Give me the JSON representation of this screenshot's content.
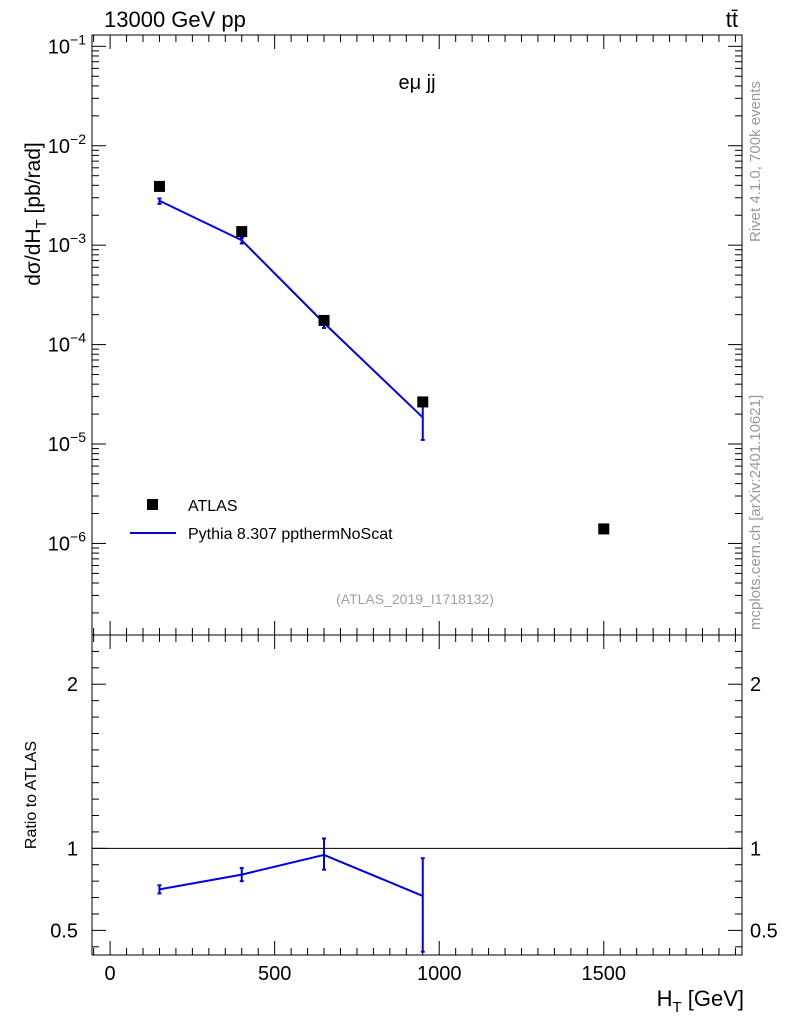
{
  "header": {
    "energy_label": "13000 GeV pp",
    "process_label": "tt̄"
  },
  "side_labels": {
    "rivet": "Rivet 4.1.0,  700k events",
    "mcplots": "mcplots.cern.ch [arXiv:2401.10621]"
  },
  "chart_data": [
    {
      "type": "scatter",
      "panel": "main",
      "scale": "log",
      "title": "eμ jj",
      "ylabel_main": "dσ/dH",
      "ylabel_sub": "T",
      "ylabel_unit": " [pb/rad]",
      "watermark": "(ATLAS_2019_I1718132)",
      "ylim": [
        1.2e-07,
        0.13
      ],
      "y_ticks": [
        {
          "base": "10",
          "exp": "−1",
          "value": 0.1
        },
        {
          "base": "10",
          "exp": "−2",
          "value": 0.01
        },
        {
          "base": "10",
          "exp": "−3",
          "value": 0.001
        },
        {
          "base": "10",
          "exp": "−4",
          "value": 0.0001
        },
        {
          "base": "10",
          "exp": "−5",
          "value": 1e-05
        },
        {
          "base": "10",
          "exp": "−6",
          "value": 1e-06
        }
      ],
      "series": [
        {
          "name": "ATLAS",
          "color": "#000000",
          "marker": "square",
          "x": [
            150,
            400,
            650,
            950,
            1500
          ],
          "y": [
            0.0039,
            0.00137,
            0.000175,
            2.65e-05,
            1.4e-06
          ]
        },
        {
          "name": "Pythia 8.307 ppthermNoScat",
          "color": "#0000dd",
          "marker": "line",
          "x": [
            150,
            400,
            650,
            950
          ],
          "y": [
            0.0028,
            0.00112,
            0.000165,
            1.85e-05
          ],
          "err_low": [
            0.0026,
            0.00104,
            0.000147,
            1.1e-05
          ],
          "err_high": [
            0.00295,
            0.00118,
            0.000183,
            2.6e-05
          ]
        }
      ]
    },
    {
      "type": "line",
      "panel": "ratio",
      "ylabel": "Ratio to ATLAS",
      "xlabel_main": "H",
      "xlabel_sub": "T",
      "xlabel_unit": " [GeV]",
      "xlim": [
        -55,
        1920
      ],
      "ylim": [
        0.35,
        2.3
      ],
      "x_ticks": [
        "0",
        "500",
        "1000",
        "1500"
      ],
      "x_tick_values": [
        0,
        500,
        1000,
        1500
      ],
      "y_ticks": [
        "2",
        "1",
        "0.5"
      ],
      "y_tick_values": [
        2,
        1,
        0.5
      ],
      "reference": 1,
      "series": [
        {
          "name": "Pythia 8.307 ppthermNoScat / ATLAS",
          "color": "#0000dd",
          "x": [
            150,
            400,
            650,
            950
          ],
          "y": [
            0.75,
            0.84,
            0.96,
            0.71
          ],
          "err_low": [
            0.725,
            0.8,
            0.87,
            0.37
          ],
          "err_high": [
            0.775,
            0.88,
            1.06,
            0.94
          ]
        }
      ]
    }
  ]
}
